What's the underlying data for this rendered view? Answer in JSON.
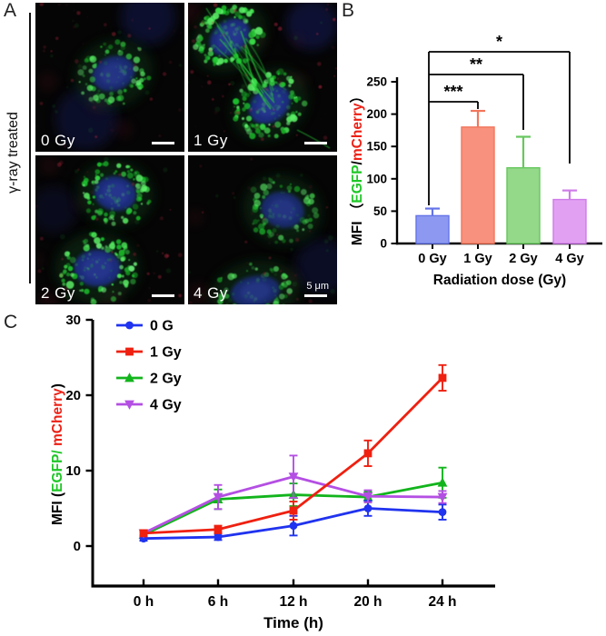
{
  "figure": {
    "panel_a": {
      "label": "A",
      "side_label": "γ-ray treated",
      "tiles": [
        {
          "label": "0 Gy"
        },
        {
          "label": "1 Gy"
        },
        {
          "label": "2 Gy"
        },
        {
          "label": "4 Gy",
          "scalebar_text": "5 μm"
        }
      ]
    },
    "panel_b": {
      "label": "B"
    },
    "panel_c": {
      "label": "C"
    }
  },
  "chart_data": [
    {
      "id": "panel-b",
      "type": "bar",
      "categories": [
        "0 Gy",
        "1 Gy",
        "2 Gy",
        "4 Gy"
      ],
      "values": [
        43,
        180,
        117,
        68
      ],
      "errors_upper": [
        11,
        25,
        48,
        14
      ],
      "bar_colors": [
        "#8d99f0",
        "#f8917d",
        "#93d989",
        "#e2a0f2"
      ],
      "xlabel": "Radiation dose (Gy)",
      "ylabel_parts": [
        {
          "text": "MFI （",
          "color": "#000000"
        },
        {
          "text": "EGFP",
          "color": "#1fc627"
        },
        {
          "text": "/",
          "color": "#000000"
        },
        {
          "text": "mCherry",
          "color": "#ed2015"
        },
        {
          "text": "）",
          "color": "#000000"
        }
      ],
      "ylim": [
        0,
        250
      ],
      "yticks": [
        0,
        50,
        100,
        150,
        200,
        250
      ],
      "grid": false,
      "significance": [
        {
          "from": "0 Gy",
          "to": "1 Gy",
          "label": "***"
        },
        {
          "from": "0 Gy",
          "to": "2 Gy",
          "label": "**"
        },
        {
          "from": "0 Gy",
          "to": "4 Gy",
          "label": "*"
        }
      ]
    },
    {
      "id": "panel-c",
      "type": "line",
      "categories": [
        "0 h",
        "6 h",
        "12 h",
        "20 h",
        "24 h"
      ],
      "series": [
        {
          "name": "0 G",
          "color": "#2033ef",
          "marker": "circle",
          "values": [
            1.0,
            1.2,
            2.7,
            5.0,
            4.5
          ],
          "errors": [
            0.3,
            0.4,
            1.3,
            1.0,
            1.0
          ]
        },
        {
          "name": "1 Gy",
          "color": "#ef2010",
          "marker": "square",
          "values": [
            1.7,
            2.2,
            4.7,
            12.3,
            22.3
          ],
          "errors": [
            0.3,
            0.5,
            1.2,
            1.7,
            1.7
          ]
        },
        {
          "name": "2 Gy",
          "color": "#12b41c",
          "marker": "triangle-up",
          "values": [
            1.5,
            6.2,
            6.8,
            6.5,
            8.4
          ],
          "errors": [
            0.4,
            1.3,
            1.5,
            0.7,
            2.0
          ]
        },
        {
          "name": "4 Gy",
          "color": "#b44fe3",
          "marker": "triangle-down",
          "values": [
            1.7,
            6.5,
            9.2,
            6.6,
            6.5
          ],
          "errors": [
            0.3,
            1.6,
            2.8,
            0.8,
            0.8
          ]
        }
      ],
      "xlabel": "Time (h)",
      "ylabel_parts": [
        {
          "text": "MFI (",
          "color": "#000000"
        },
        {
          "text": "EGFP/",
          "color": "#1fc627"
        },
        {
          "text": " mCherry",
          "color": "#ed2015"
        },
        {
          "text": ")",
          "color": "#000000"
        }
      ],
      "ylim": [
        0,
        30
      ],
      "yticks": [
        0,
        10,
        20,
        30
      ],
      "grid": false,
      "legend_position": "top-left"
    }
  ]
}
